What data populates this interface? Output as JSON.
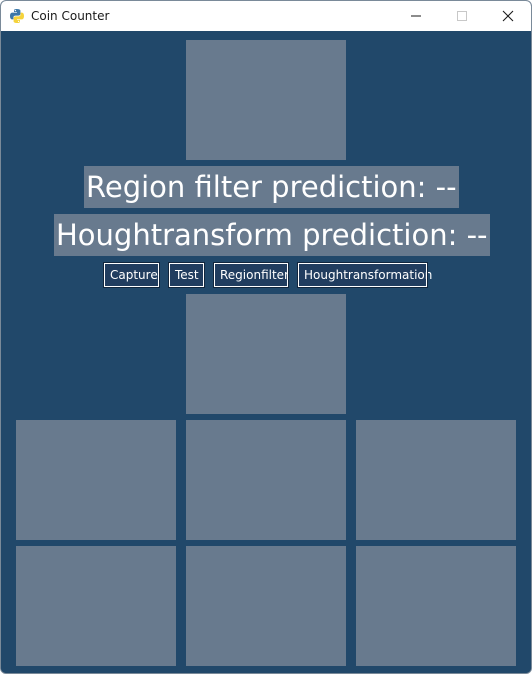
{
  "window": {
    "title": "Coin Counter"
  },
  "predictions": {
    "region": "Region filter prediction: --",
    "hough": "Houghtransform prediction: --"
  },
  "buttons": {
    "capture": "Capture",
    "test": "Test",
    "regionfilter": "Regionfilter",
    "houghtransformation": "Houghtransformation"
  },
  "colors": {
    "background": "#21486a",
    "placeholder": "#687a8e",
    "button": "#213d5f",
    "text": "#ffffff"
  },
  "icons": {
    "app": "python-icon",
    "minimize": "minimize-icon",
    "maximize": "maximize-icon",
    "close": "close-icon"
  }
}
